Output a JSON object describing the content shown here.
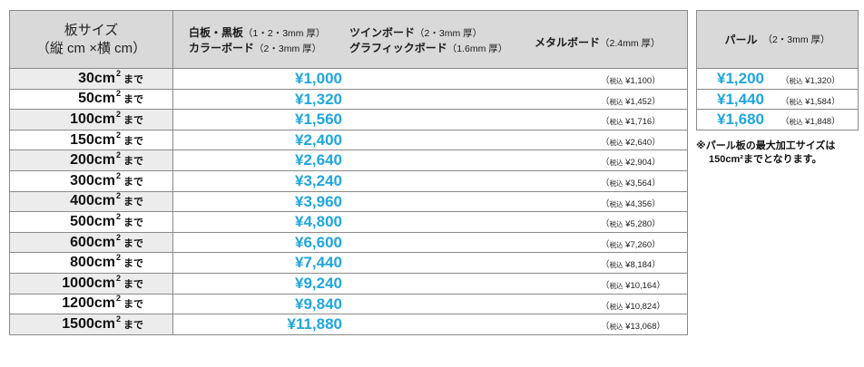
{
  "header": {
    "size_col": [
      "板サイズ",
      "（縦 cm ×横 cm）"
    ],
    "materials": [
      {
        "name1": "白板・黒板",
        "sub1": "（1・2・3mm 厚）",
        "name2": "カラーボード",
        "sub2": "（2・3mm 厚）"
      },
      {
        "name1": "ツインボード",
        "sub1": "（2・3mm 厚）",
        "name2": "グラフィックボード",
        "sub2": "（1.6mm 厚）"
      },
      {
        "name1": "メタルボード",
        "sub1": "（2.4mm 厚）"
      }
    ]
  },
  "rows": [
    {
      "size": "30cm",
      "unit": "2",
      "made": "まで",
      "price": "¥1,000",
      "tax_label": "税込",
      "tax": "¥1,100"
    },
    {
      "size": "50cm",
      "unit": "2",
      "made": "まで",
      "price": "¥1,320",
      "tax_label": "税込",
      "tax": "¥1,452"
    },
    {
      "size": "100cm",
      "unit": "2",
      "made": "まで",
      "price": "¥1,560",
      "tax_label": "税込",
      "tax": "¥1,716"
    },
    {
      "size": "150cm",
      "unit": "2",
      "made": "まで",
      "price": "¥2,400",
      "tax_label": "税込",
      "tax": "¥2,640"
    },
    {
      "size": "200cm",
      "unit": "2",
      "made": "まで",
      "price": "¥2,640",
      "tax_label": "税込",
      "tax": "¥2,904"
    },
    {
      "size": "300cm",
      "unit": "2",
      "made": "まで",
      "price": "¥3,240",
      "tax_label": "税込",
      "tax": "¥3,564"
    },
    {
      "size": "400cm",
      "unit": "2",
      "made": "まで",
      "price": "¥3,960",
      "tax_label": "税込",
      "tax": "¥4,356"
    },
    {
      "size": "500cm",
      "unit": "2",
      "made": "まで",
      "price": "¥4,800",
      "tax_label": "税込",
      "tax": "¥5,280"
    },
    {
      "size": "600cm",
      "unit": "2",
      "made": "まで",
      "price": "¥6,600",
      "tax_label": "税込",
      "tax": "¥7,260"
    },
    {
      "size": "800cm",
      "unit": "2",
      "made": "まで",
      "price": "¥7,440",
      "tax_label": "税込",
      "tax": "¥8,184"
    },
    {
      "size": "1000cm",
      "unit": "2",
      "made": "まで",
      "price": "¥9,240",
      "tax_label": "税込",
      "tax": "¥10,164"
    },
    {
      "size": "1200cm",
      "unit": "2",
      "made": "まで",
      "price": "¥9,840",
      "tax_label": "税込",
      "tax": "¥10,824"
    },
    {
      "size": "1500cm",
      "unit": "2",
      "made": "まで",
      "price": "¥11,880",
      "tax_label": "税込",
      "tax": "¥13,068"
    }
  ],
  "pearl": {
    "title": "パール",
    "sub": "（2・3mm 厚）",
    "rows": [
      {
        "price": "¥1,200",
        "tax_label": "税込",
        "tax": "¥1,320"
      },
      {
        "price": "¥1,440",
        "tax_label": "税込",
        "tax": "¥1,584"
      },
      {
        "price": "¥1,680",
        "tax_label": "税込",
        "tax": "¥1,848"
      }
    ],
    "note": [
      "※パール板の最大加工サイズは",
      "150cm²までとなります。"
    ]
  }
}
